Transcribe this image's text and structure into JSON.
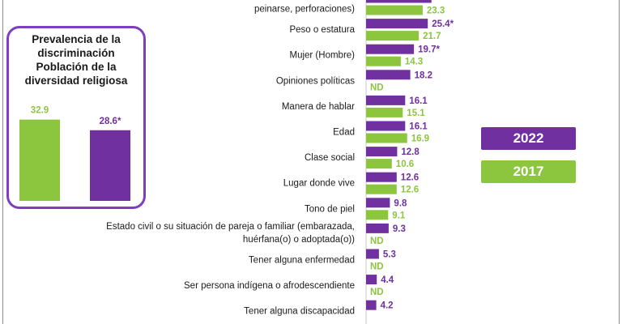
{
  "colors": {
    "series_2022": "#7030a0",
    "series_2017": "#8cc63f",
    "value_2022": "#7030a0",
    "value_2017": "#8cc63f",
    "box_border": "#7d3fbf"
  },
  "prevalence": {
    "title_lines": [
      "Prevalencia de la",
      "discriminación",
      "Población de la",
      "diversidad religiosa"
    ],
    "bars": [
      {
        "series": "2017",
        "value": 32.9,
        "label": "32.9"
      },
      {
        "series": "2022",
        "value": 28.6,
        "label": "28.6*"
      }
    ]
  },
  "legend": [
    {
      "label": "2022",
      "series": "2022"
    },
    {
      "label": "2017",
      "series": "2017"
    }
  ],
  "chart_data": {
    "type": "bar",
    "orientation": "horizontal",
    "categories": [
      [
        "",
        "peinarse, perforaciones)"
      ],
      [
        "Peso o estatura"
      ],
      [
        "Mujer (Hombre)"
      ],
      [
        "Opiniones políticas"
      ],
      [
        "Manera de hablar"
      ],
      [
        "Edad"
      ],
      [
        "Clase social"
      ],
      [
        "Lugar donde vive"
      ],
      [
        "Tono de piel"
      ],
      [
        "Estado civil o su situación de pareja o familiar (embarazada,",
        "huérfana(o) o adoptada(o))"
      ],
      [
        "Tener alguna enfermedad"
      ],
      [
        "Ser persona indígena o afrodescendiente"
      ],
      [
        "Tener alguna discapacidad"
      ]
    ],
    "series": [
      {
        "name": "2022",
        "values": [
          26.9,
          25.4,
          19.7,
          18.2,
          16.1,
          16.1,
          12.8,
          12.6,
          9.8,
          9.3,
          5.3,
          4.4,
          4.2
        ],
        "labels": [
          "",
          "25.4*",
          "19.7*",
          "18.2",
          "16.1",
          "16.1",
          "12.8",
          "12.6",
          "9.8",
          "9.3",
          "5.3",
          "4.4",
          "4.2"
        ]
      },
      {
        "name": "2017",
        "values": [
          23.3,
          21.7,
          14.3,
          null,
          15.1,
          16.9,
          10.6,
          12.6,
          9.1,
          null,
          null,
          null,
          null
        ],
        "labels": [
          "23.3",
          "21.7",
          "14.3",
          "ND",
          "15.1",
          "16.9",
          "10.6",
          "12.6",
          "9.1",
          "ND",
          "ND",
          "ND",
          ""
        ]
      }
    ]
  }
}
